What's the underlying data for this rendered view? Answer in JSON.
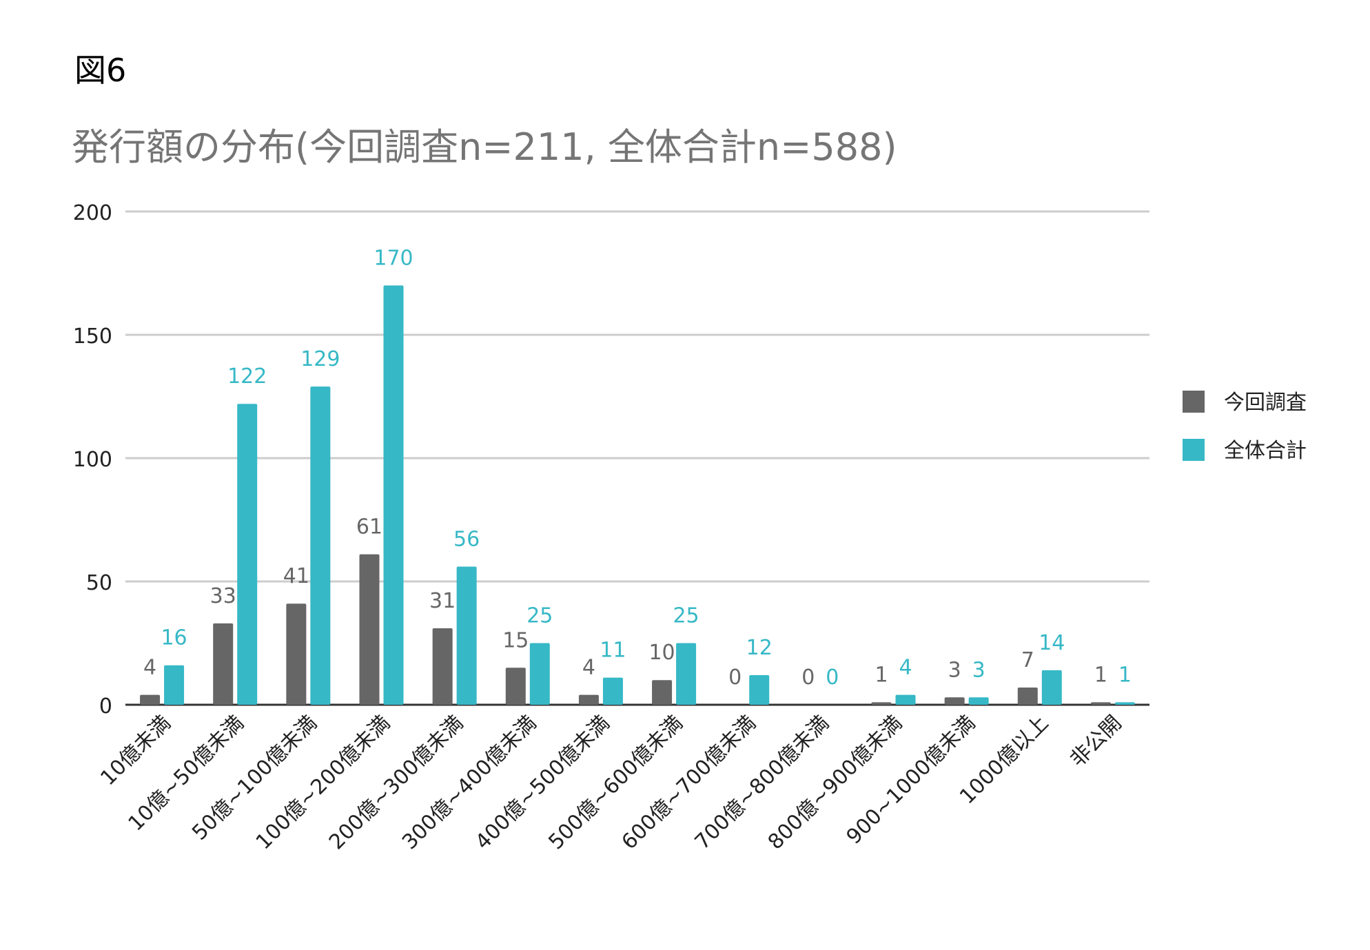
{
  "figure_label": "図6",
  "chart_data": {
    "type": "bar",
    "title": "発行額の分布(今回調査n=211, 全体合計n=588)",
    "xlabel": "",
    "ylabel": "",
    "ylim": [
      0,
      200
    ],
    "yticks": [
      0,
      50,
      100,
      150,
      200
    ],
    "grid": true,
    "legend_position": "right",
    "categories": [
      "10億未満",
      "10億~50億未満",
      "50億~100億未満",
      "100億~200億未満",
      "200億~300億未満",
      "300億~400億未満",
      "400億~500億未満",
      "500億~600億未満",
      "600億~700億未満",
      "700億~800億未満",
      "800億~900億未満",
      "900~1000億未満",
      "1000億以上",
      "非公開"
    ],
    "series": [
      {
        "name": "今回調査",
        "color": "#666666",
        "label_color": "#666666",
        "values": [
          4,
          33,
          41,
          61,
          31,
          15,
          4,
          10,
          0,
          0,
          1,
          3,
          7,
          1
        ]
      },
      {
        "name": "全体合計",
        "color": "#36b8c6",
        "label_color": "#36b8c6",
        "values": [
          16,
          122,
          129,
          170,
          56,
          25,
          11,
          25,
          12,
          0,
          4,
          3,
          14,
          1
        ]
      }
    ]
  }
}
